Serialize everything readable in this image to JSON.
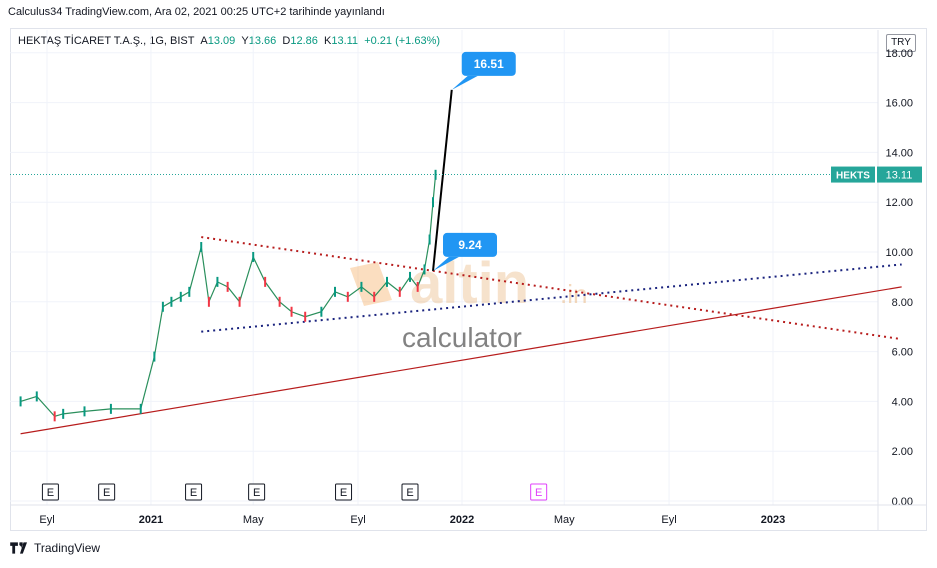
{
  "header": {
    "published": "Calculus34 TradingView.com, Ara 02, 2021 00:25 UTC+2 tarihinde yayınlandı"
  },
  "symbol": {
    "name": "HEKTAŞ TİCARET T.A.Ş., 1G, BIST",
    "open_label": "A",
    "open": "13.09",
    "high_label": "Y",
    "high": "13.66",
    "low_label": "D",
    "low": "12.86",
    "close_label": "K",
    "close": "13.11",
    "change": "+0.21 (+1.63%)"
  },
  "currency": "TRY",
  "footer": {
    "brand": "TradingView"
  },
  "watermark": {
    "main": "altin",
    "suffix": ".in",
    "sub": "calculator"
  },
  "colors": {
    "up": "#089981",
    "down": "#f23645",
    "price_tag": "#26a69a",
    "callout": "#2196f3",
    "trend_red": "#b71c1c",
    "trend_blue": "#1a237e"
  },
  "chart_data": {
    "type": "line",
    "ticker_tag": "HEKTS",
    "last_price": 13.11,
    "ylim": [
      0,
      18
    ],
    "y_ticks": [
      "0.00",
      "2.00",
      "4.00",
      "6.00",
      "8.00",
      "10.00",
      "12.00",
      "14.00",
      "16.00",
      "18.00"
    ],
    "x_ticks": [
      "Eyl",
      "2021",
      "May",
      "Eyl",
      "2022",
      "May",
      "Eyl",
      "2023"
    ],
    "series": [
      {
        "x": [
          "2020-08-01",
          "2020-08-20",
          "2020-09-10",
          "2020-09-20",
          "2020-10-15",
          "2020-11-15",
          "2020-12-20",
          "2021-01-05",
          "2021-01-15",
          "2021-01-25",
          "2021-02-05",
          "2021-02-15",
          "2021-03-01",
          "2021-03-10",
          "2021-03-20",
          "2021-04-01",
          "2021-04-15",
          "2021-05-01",
          "2021-05-15",
          "2021-06-01",
          "2021-06-15",
          "2021-07-01",
          "2021-07-20",
          "2021-08-05",
          "2021-08-20",
          "2021-09-05",
          "2021-09-20",
          "2021-10-05",
          "2021-10-20",
          "2021-11-01",
          "2021-11-10",
          "2021-11-18",
          "2021-11-24",
          "2021-11-28",
          "2021-12-01"
        ],
        "values": [
          4.0,
          4.2,
          3.4,
          3.5,
          3.6,
          3.7,
          3.7,
          5.8,
          7.8,
          8.0,
          8.2,
          8.4,
          10.2,
          8.0,
          8.8,
          8.6,
          8.0,
          9.8,
          8.8,
          8.0,
          7.6,
          7.4,
          7.6,
          8.4,
          8.2,
          8.6,
          8.2,
          8.8,
          8.4,
          9.0,
          8.6,
          9.3,
          10.5,
          12.0,
          13.1
        ]
      }
    ],
    "annotations": [
      {
        "type": "callout",
        "text": "16.51",
        "x": "2021-12-20",
        "y": 16.51
      },
      {
        "type": "callout",
        "text": "9.24",
        "x": "2021-11-28",
        "y": 9.24
      },
      {
        "type": "earnings",
        "label": "E",
        "x": [
          "2020-09-05",
          "2020-11-10",
          "2021-02-20",
          "2021-05-05",
          "2021-08-15",
          "2021-11-01",
          "2022-04-01"
        ]
      }
    ],
    "trendlines": [
      {
        "style": "solid",
        "color": "#b71c1c",
        "from": [
          "2020-08-01",
          2.7
        ],
        "to": [
          "2023-06-01",
          8.6
        ]
      },
      {
        "style": "dotted",
        "color": "#b71c1c",
        "from": [
          "2021-03-01",
          10.6
        ],
        "to": [
          "2023-06-01",
          6.5
        ]
      },
      {
        "style": "dotted",
        "color": "#1a237e",
        "from": [
          "2021-03-01",
          6.8
        ],
        "to": [
          "2023-06-01",
          9.5
        ]
      },
      {
        "style": "solid",
        "color": "#000000",
        "from": [
          "2021-11-28",
          9.24
        ],
        "to": [
          "2021-12-20",
          16.51
        ]
      }
    ]
  }
}
